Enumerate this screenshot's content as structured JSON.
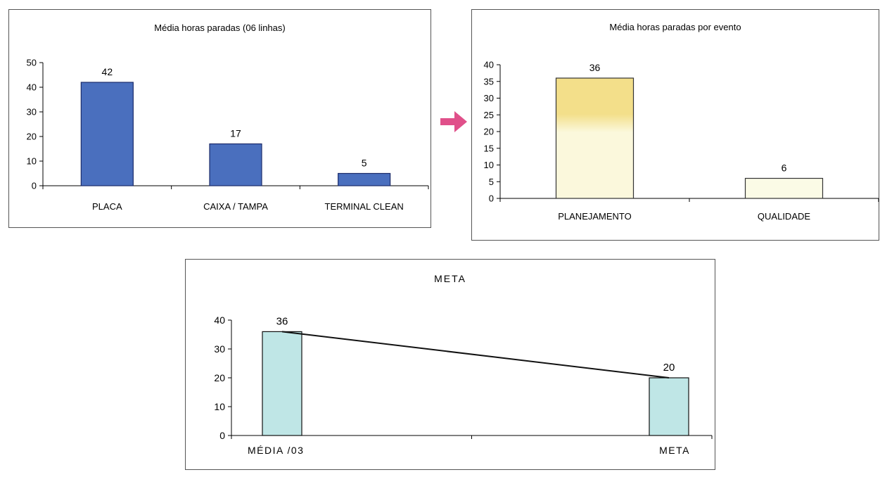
{
  "colors": {
    "bar_blue": "#4a6fbe",
    "bar_blue_edge": "#1b2b6a",
    "bar_yellow_top": "#f3df8a",
    "bar_yellow_bottom": "#fbf8dc",
    "bar_light": "#fbfbe6",
    "bar_cyan": "#bfe6e6",
    "arrow": "#e0508a",
    "axis": "#000000"
  },
  "arrow": {
    "icon": "right-arrow-icon"
  },
  "chart_data": [
    {
      "type": "bar",
      "title": "Média horas paradas (06 linhas)",
      "categories": [
        "PLACA",
        "CAIXA / TAMPA",
        "TERMINAL CLEAN"
      ],
      "values": [
        42,
        17,
        5
      ],
      "data_labels": [
        "42",
        "17",
        "5"
      ],
      "ylim": [
        0,
        50
      ],
      "yticks": [
        "0",
        "10",
        "20",
        "30",
        "40",
        "50"
      ],
      "xlabel": "",
      "ylabel": "",
      "grid": false,
      "legend": "none"
    },
    {
      "type": "bar",
      "title": "Média horas paradas por evento",
      "categories": [
        "PLANEJAMENTO",
        "QUALIDADE"
      ],
      "values": [
        36,
        6
      ],
      "data_labels": [
        "36",
        "6"
      ],
      "ylim": [
        0,
        40
      ],
      "yticks": [
        "0",
        "5",
        "10",
        "15",
        "20",
        "25",
        "30",
        "35",
        "40"
      ],
      "xlabel": "",
      "ylabel": "",
      "grid": false,
      "legend": "none"
    },
    {
      "type": "bar",
      "title": "META",
      "categories": [
        "MÉDIA /03",
        "META"
      ],
      "values": [
        36,
        20
      ],
      "data_labels": [
        "36",
        "20"
      ],
      "trend_line": [
        36,
        20
      ],
      "ylim": [
        0,
        40
      ],
      "yticks": [
        "0",
        "10",
        "20",
        "30",
        "40"
      ],
      "xlabel": "",
      "ylabel": "",
      "grid": false,
      "legend": "none"
    }
  ]
}
